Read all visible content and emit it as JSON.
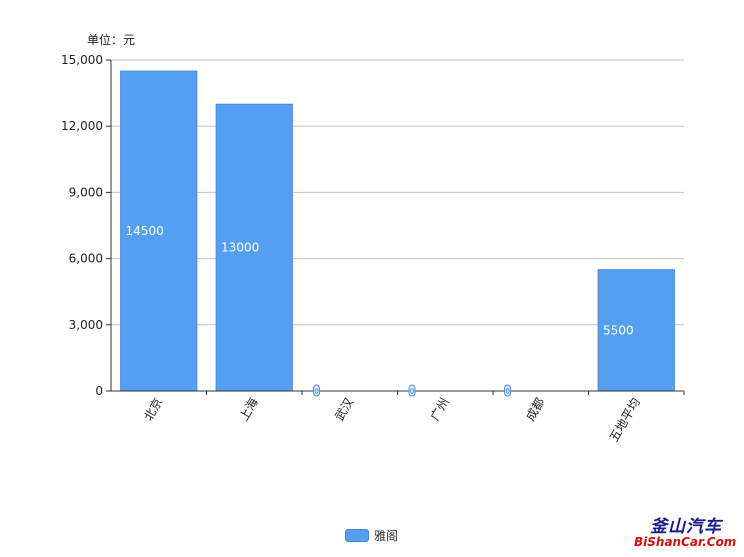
{
  "unit_label": "单位：元",
  "legend": {
    "label": "雅阁",
    "color": "#559ff0",
    "border": "#3d86d6"
  },
  "watermark": {
    "top": "釜山汽车",
    "bottom": "BiShanCar.Com"
  },
  "chart_data": {
    "type": "bar",
    "categories": [
      "北京",
      "上海",
      "武汉",
      "广州",
      "成都",
      "五地平均"
    ],
    "series": [
      {
        "name": "雅阁",
        "values": [
          14500,
          13000,
          0,
          0,
          0,
          5500
        ],
        "color": "#559ff0"
      }
    ],
    "data_labels": [
      "14500",
      "13000",
      "0",
      "0",
      "0",
      "5500"
    ],
    "ylim": [
      0,
      15000
    ],
    "yticks": [
      0,
      3000,
      6000,
      9000,
      12000,
      15000
    ],
    "ytick_labels": [
      "0",
      "3,000",
      "6,000",
      "9,000",
      "12,000",
      "15,000"
    ],
    "grid": true,
    "legend_position": "bottom-center"
  }
}
